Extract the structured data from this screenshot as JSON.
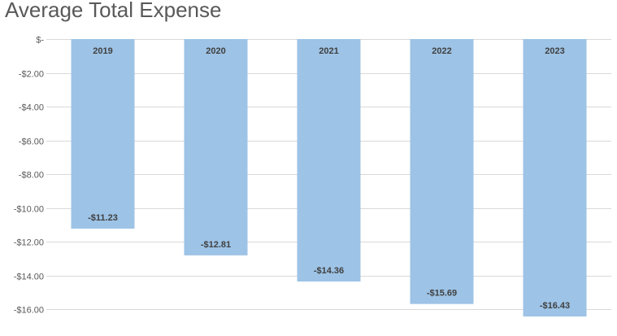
{
  "chart_data": {
    "type": "bar",
    "title": "Average Total Expense",
    "categories": [
      "2019",
      "2020",
      "2021",
      "2022",
      "2023"
    ],
    "values": [
      -11.23,
      -12.81,
      -14.36,
      -15.69,
      -16.43
    ],
    "data_labels": [
      "-$11.23",
      "-$12.81",
      "-$14.36",
      "-$15.69",
      "-$16.43"
    ],
    "ylim": [
      -16.43,
      0
    ],
    "y_ticks": [
      0,
      -2,
      -4,
      -6,
      -8,
      -10,
      -12,
      -14,
      -16
    ],
    "y_tick_labels": [
      "$-",
      "-$2.00",
      "-$4.00",
      "-$6.00",
      "-$8.00",
      "-$10.00",
      "-$12.00",
      "-$14.00",
      "-$16.00"
    ],
    "xlabel": "",
    "ylabel": "",
    "grid": true,
    "legend": "none",
    "bar_color": "#9dc3e6",
    "gridline_color": "#d9d9d9"
  }
}
